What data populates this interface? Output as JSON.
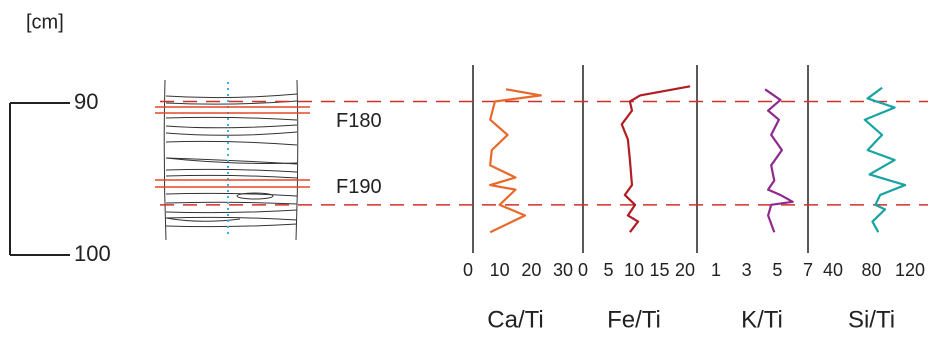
{
  "depth_scale": {
    "unit": "[cm]",
    "ylim": [
      87.5,
      100
    ],
    "yticks": [
      90,
      100
    ]
  },
  "horizons": [
    {
      "label": "F180",
      "depth": 89.9
    },
    {
      "label": "F190",
      "depth": 96.7
    }
  ],
  "chart_data": [
    {
      "type": "line",
      "xlabel": "Ca/Ti",
      "color": "#e8692a",
      "xlim": [
        0,
        30
      ],
      "xticks": [
        0,
        10,
        20,
        30
      ],
      "values": [
        12,
        23,
        8.5,
        7,
        12.5,
        7.5,
        7,
        15,
        7,
        15,
        10,
        18,
        7
      ],
      "depth": [
        89.1,
        89.5,
        89.9,
        91.1,
        92.1,
        93.1,
        94.1,
        94.9,
        95.4,
        95.7,
        96.7,
        97.4,
        98.5
      ]
    },
    {
      "type": "line",
      "xlabel": "Fe/Ti",
      "color": "#b01e24",
      "xlim": [
        0,
        20
      ],
      "xticks": [
        0,
        5,
        10,
        15,
        20
      ],
      "values": [
        21,
        11.2,
        9.2,
        9.6,
        7.6,
        8.8,
        9.2,
        9.6,
        8.2,
        10.2,
        8.8,
        10.8,
        9.2
      ],
      "depth": [
        88.9,
        89.5,
        89.9,
        90.5,
        91.4,
        92.4,
        93.75,
        95.4,
        96.05,
        96.7,
        97.4,
        97.8,
        98.5
      ]
    },
    {
      "type": "line",
      "xlabel": "K/Ti",
      "color": "#8e2a8e",
      "xlim": [
        1,
        7
      ],
      "xticks": [
        1,
        3,
        5,
        7
      ],
      "values": [
        4.2,
        5.2,
        4.4,
        5.1,
        4.6,
        5.3,
        4.6,
        4.8,
        4.4,
        5.2,
        6,
        4.6,
        4.4,
        4.8
      ],
      "depth": [
        89.1,
        89.8,
        90.5,
        91.1,
        92.1,
        93.1,
        94.1,
        95.1,
        95.7,
        96.05,
        96.5,
        96.7,
        97.4,
        98.5
      ]
    },
    {
      "type": "line",
      "xlabel": "Si/Ti",
      "color": "#1aa3a3",
      "xlim": [
        40,
        120
      ],
      "xticks": [
        40,
        80,
        120
      ],
      "values": [
        91,
        76,
        104,
        73,
        91,
        76,
        104,
        78,
        115,
        89,
        84,
        94,
        81,
        87
      ],
      "depth": [
        89.0,
        89.7,
        90.3,
        91.1,
        92.1,
        93.1,
        93.75,
        94.7,
        95.4,
        96.05,
        96.7,
        97.0,
        97.8,
        98.5
      ]
    }
  ]
}
